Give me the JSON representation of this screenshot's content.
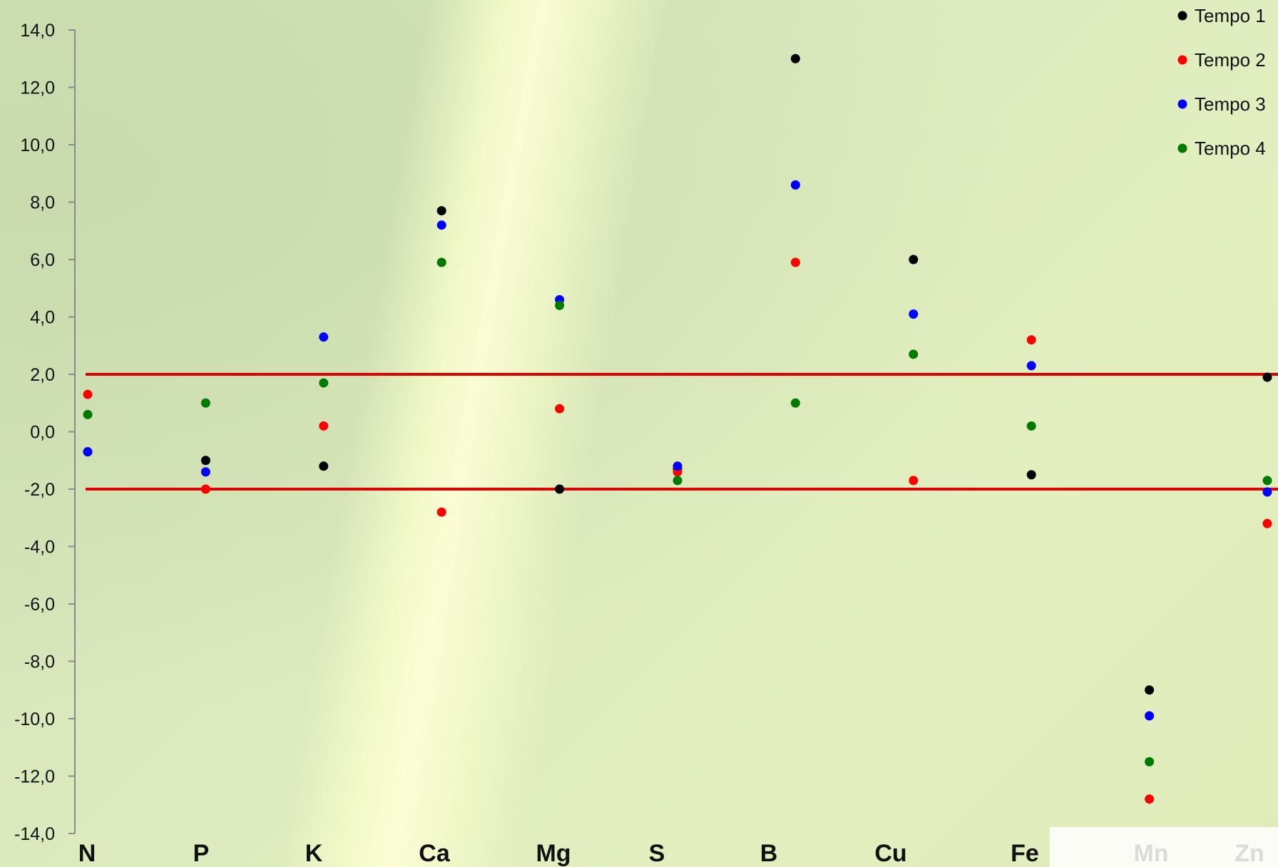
{
  "chart_data": {
    "type": "scatter",
    "title": "",
    "xlabel": "",
    "ylabel": "",
    "categories": [
      "N",
      "P",
      "K",
      "Ca",
      "Mg",
      "S",
      "B",
      "Cu",
      "Fe",
      "Mn",
      "Zn"
    ],
    "ylim": [
      -14,
      14
    ],
    "yticks": [
      14,
      12,
      10,
      8,
      6,
      4,
      2,
      0,
      -2,
      -4,
      -6,
      -8,
      -10,
      -12,
      -14
    ],
    "ytick_labels": [
      "14,0",
      "12,0",
      "10,0",
      "8,0",
      "6,0",
      "4,0",
      "2,0",
      "0,0",
      "-2,0",
      "-4,0",
      "-6,0",
      "-8,0",
      "-10,0",
      "-12,0",
      "-14,0"
    ],
    "reference_lines": [
      2,
      -2
    ],
    "reference_color": "#e00000",
    "grid": false,
    "legend_position": "top-right",
    "series": [
      {
        "name": "Tempo 1",
        "color": "#000000",
        "values": [
          -0.7,
          -1.0,
          -1.2,
          7.7,
          -2.0,
          -1.3,
          13.0,
          6.0,
          -1.5,
          -9.0,
          1.9
        ]
      },
      {
        "name": "Tempo 2",
        "color": "#ff0000",
        "values": [
          1.3,
          -2.0,
          0.2,
          -2.8,
          0.8,
          -1.4,
          5.9,
          -1.7,
          3.2,
          -12.8,
          -3.2
        ]
      },
      {
        "name": "Tempo 3",
        "color": "#0000ff",
        "values": [
          -0.7,
          -1.4,
          3.3,
          7.2,
          4.6,
          -1.2,
          8.6,
          4.1,
          2.3,
          -9.9,
          -2.1
        ]
      },
      {
        "name": "Tempo 4",
        "color": "#007a00",
        "values": [
          0.6,
          1.0,
          1.7,
          5.9,
          4.4,
          -1.7,
          1.0,
          2.7,
          0.2,
          -11.5,
          -1.7
        ]
      }
    ]
  }
}
